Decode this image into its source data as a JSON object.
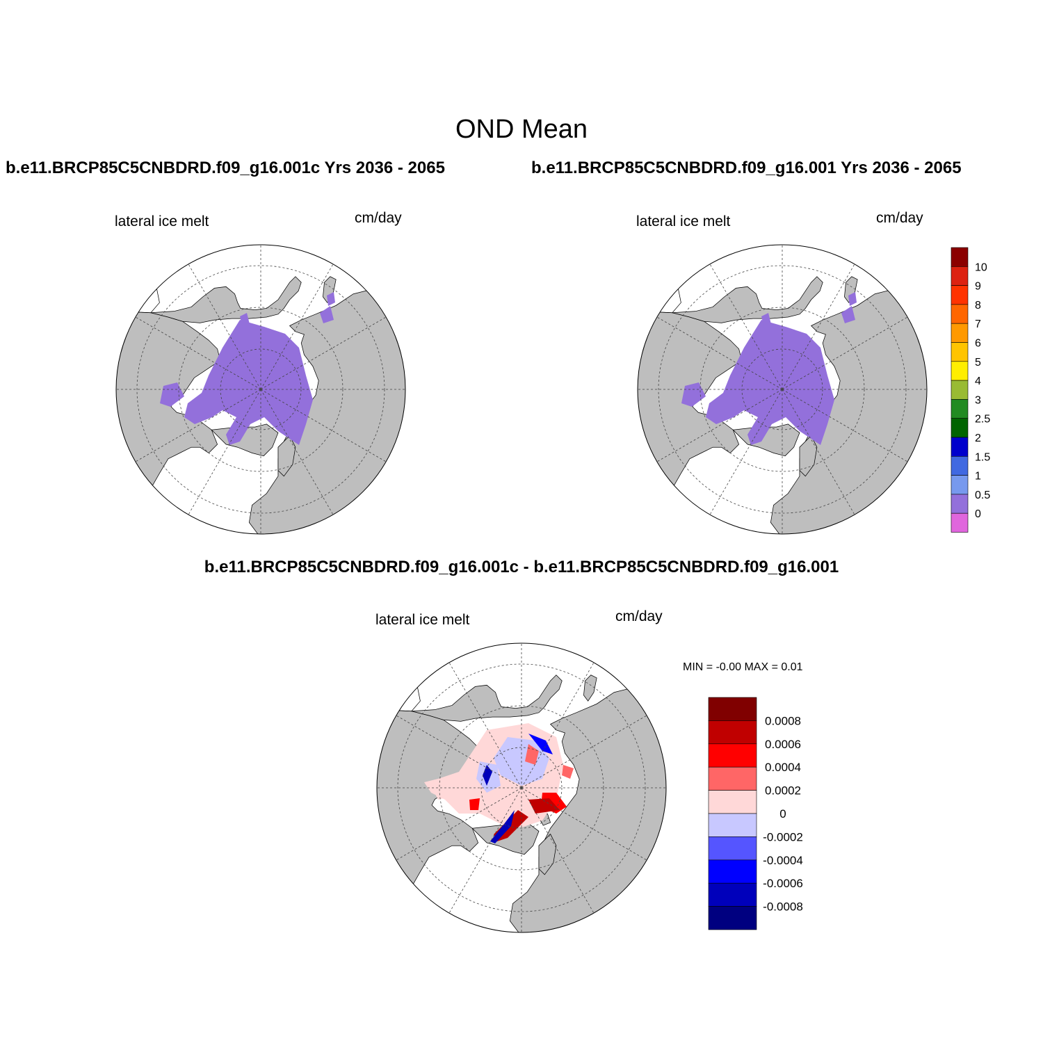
{
  "title": "OND Mean",
  "panels": {
    "left": {
      "case_title": "b.e11.BRCP85C5CNBDRD.f09_g16.001c  Yrs 2036 - 2065",
      "variable": "lateral ice melt",
      "units": "cm/day"
    },
    "right": {
      "case_title": "b.e11.BRCP85C5CNBDRD.f09_g16.001  Yrs 2036 - 2065",
      "variable": "lateral ice melt",
      "units": "cm/day"
    },
    "diff": {
      "title": "b.e11.BRCP85C5CNBDRD.f09_g16.001c - b.e11.BRCP85C5CNBDRD.f09_g16.001",
      "variable": "lateral ice melt",
      "units": "cm/day",
      "minmax": "MIN =  -0.00 MAX =   0.01"
    }
  },
  "colorbar_main": {
    "labels": [
      "10",
      "9",
      "8",
      "7",
      "6",
      "5",
      "4",
      "3",
      "2.5",
      "2",
      "1.5",
      "1",
      "0.5",
      "0"
    ],
    "colors": [
      "#8b0000",
      "#dd2211",
      "#ff3300",
      "#ff6600",
      "#ff9900",
      "#ffc400",
      "#ffee00",
      "#99bb33",
      "#228b22",
      "#006400",
      "#0000cc",
      "#4169e1",
      "#7799ee",
      "#9370db",
      "#e066dd"
    ]
  },
  "colorbar_diff": {
    "labels": [
      "0.0008",
      "0.0006",
      "0.0004",
      "0.0002",
      "0",
      "-0.0002",
      "-0.0004",
      "-0.0006",
      "-0.0008"
    ],
    "colors": [
      "#800000",
      "#c00000",
      "#ff0000",
      "#ff6666",
      "#ffd8d8",
      "#c8c8ff",
      "#5555ff",
      "#0000ff",
      "#0000bb",
      "#000080"
    ]
  },
  "map_colors": {
    "land": "#bebebe",
    "ocean": "#ffffff",
    "ice_melt": "#9370db"
  }
}
